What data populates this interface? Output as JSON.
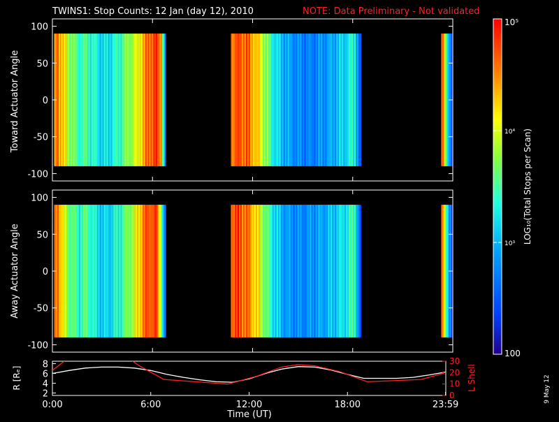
{
  "title": "TWINS1: Stop Counts: 12 Jan (day  12), 2010",
  "note": "NOTE: Data Preliminary - Not validated",
  "stamp": "9 May 12",
  "colors": {
    "background": "#000000",
    "axes": "#ffffff",
    "note": "#ff2020",
    "r_line": "#ffffff",
    "lshell_line": "#ff2020"
  },
  "chart_data": [
    {
      "type": "heatmap",
      "panel": "toward",
      "ylabel": "Toward Actuator Angle",
      "xlim": [
        0,
        24
      ],
      "ylim": [
        -110,
        110
      ],
      "yticks": [
        100,
        50,
        0,
        -50,
        -100
      ],
      "angle_range": [
        -90,
        90
      ],
      "data_intervals_hours": [
        [
          0.1,
          6.8
        ],
        [
          10.7,
          18.5
        ],
        [
          23.3,
          24.0
        ]
      ],
      "colorscale": "rainbow",
      "columns": [
        {
          "t": 0.1,
          "c": 0.78
        },
        {
          "t": 0.3,
          "c": 0.88
        },
        {
          "t": 0.6,
          "c": 0.72
        },
        {
          "t": 1.0,
          "c": 0.6
        },
        {
          "t": 1.5,
          "c": 0.48
        },
        {
          "t": 2.0,
          "c": 0.5
        },
        {
          "t": 2.5,
          "c": 0.44
        },
        {
          "t": 3.0,
          "c": 0.38
        },
        {
          "t": 3.5,
          "c": 0.42
        },
        {
          "t": 4.0,
          "c": 0.48
        },
        {
          "t": 4.5,
          "c": 0.58
        },
        {
          "t": 5.0,
          "c": 0.66
        },
        {
          "t": 5.4,
          "c": 0.78
        },
        {
          "t": 5.8,
          "c": 0.9
        },
        {
          "t": 6.2,
          "c": 0.92
        },
        {
          "t": 6.5,
          "c": 0.82
        },
        {
          "t": 6.8,
          "c": 0.0
        },
        {
          "t": 10.7,
          "c": 0.86
        },
        {
          "t": 11.1,
          "c": 0.9
        },
        {
          "t": 11.6,
          "c": 0.88
        },
        {
          "t": 12.1,
          "c": 0.78
        },
        {
          "t": 12.6,
          "c": 0.64
        },
        {
          "t": 13.1,
          "c": 0.46
        },
        {
          "t": 13.6,
          "c": 0.36
        },
        {
          "t": 14.1,
          "c": 0.3
        },
        {
          "t": 14.6,
          "c": 0.26
        },
        {
          "t": 15.1,
          "c": 0.24
        },
        {
          "t": 15.6,
          "c": 0.24
        },
        {
          "t": 16.1,
          "c": 0.27
        },
        {
          "t": 16.6,
          "c": 0.3
        },
        {
          "t": 17.1,
          "c": 0.35
        },
        {
          "t": 17.6,
          "c": 0.4
        },
        {
          "t": 18.1,
          "c": 0.46
        },
        {
          "t": 18.5,
          "c": 0.0
        },
        {
          "t": 23.3,
          "c": 0.9
        },
        {
          "t": 24.0,
          "c": 0.0
        }
      ]
    },
    {
      "type": "heatmap",
      "panel": "away",
      "ylabel": "Away Actuator Angle",
      "xlim": [
        0,
        24
      ],
      "ylim": [
        -110,
        110
      ],
      "yticks": [
        100,
        50,
        0,
        -50,
        -100
      ],
      "angle_range": [
        -90,
        90
      ],
      "data_intervals_hours": [
        [
          0.1,
          6.8
        ],
        [
          10.7,
          18.5
        ],
        [
          23.3,
          24.0
        ]
      ],
      "colorscale": "rainbow",
      "columns": [
        {
          "t": 0.1,
          "c": 0.8
        },
        {
          "t": 0.3,
          "c": 0.9
        },
        {
          "t": 0.6,
          "c": 0.66
        },
        {
          "t": 1.0,
          "c": 0.56
        },
        {
          "t": 1.5,
          "c": 0.46
        },
        {
          "t": 2.0,
          "c": 0.52
        },
        {
          "t": 2.5,
          "c": 0.42
        },
        {
          "t": 3.0,
          "c": 0.36
        },
        {
          "t": 3.5,
          "c": 0.4
        },
        {
          "t": 4.0,
          "c": 0.46
        },
        {
          "t": 4.5,
          "c": 0.56
        },
        {
          "t": 5.0,
          "c": 0.68
        },
        {
          "t": 5.4,
          "c": 0.84
        },
        {
          "t": 5.8,
          "c": 0.92
        },
        {
          "t": 6.2,
          "c": 0.9
        },
        {
          "t": 6.5,
          "c": 0.6
        },
        {
          "t": 6.8,
          "c": 0.0
        },
        {
          "t": 10.7,
          "c": 0.9
        },
        {
          "t": 11.1,
          "c": 0.92
        },
        {
          "t": 11.6,
          "c": 0.86
        },
        {
          "t": 12.1,
          "c": 0.76
        },
        {
          "t": 12.6,
          "c": 0.6
        },
        {
          "t": 13.1,
          "c": 0.44
        },
        {
          "t": 13.6,
          "c": 0.34
        },
        {
          "t": 14.1,
          "c": 0.28
        },
        {
          "t": 14.6,
          "c": 0.26
        },
        {
          "t": 15.1,
          "c": 0.26
        },
        {
          "t": 15.6,
          "c": 0.28
        },
        {
          "t": 16.1,
          "c": 0.3
        },
        {
          "t": 16.6,
          "c": 0.34
        },
        {
          "t": 17.1,
          "c": 0.38
        },
        {
          "t": 17.6,
          "c": 0.42
        },
        {
          "t": 18.1,
          "c": 0.5
        },
        {
          "t": 18.5,
          "c": 0.0
        },
        {
          "t": 23.3,
          "c": 0.86
        },
        {
          "t": 24.0,
          "c": 0.0
        }
      ]
    },
    {
      "type": "line",
      "panel": "orbit",
      "ylabel_left": "R [Rₑ]",
      "ylabel_right": "L Shell",
      "xlabel": "Time (UT)",
      "xlim": [
        0,
        24
      ],
      "ylim_left": [
        1.5,
        8.5
      ],
      "yticks_left": [
        2,
        4,
        6,
        8
      ],
      "ylim_right": [
        0,
        30
      ],
      "yticks_right": [
        0,
        10,
        20,
        30
      ],
      "xticks": [
        0,
        6,
        12,
        18,
        23.983
      ],
      "xtick_labels": [
        "0:00",
        "6:00",
        "12:00",
        "18:00",
        "23:59"
      ],
      "series": [
        {
          "axis": "left",
          "color": "#ffffff",
          "x": [
            0,
            1,
            2,
            3,
            4,
            5,
            6,
            7,
            8,
            9,
            10,
            11,
            12,
            13,
            14,
            15,
            16,
            17,
            18,
            19,
            20,
            21,
            22,
            23,
            24
          ],
          "y": [
            6.0,
            6.6,
            7.1,
            7.3,
            7.3,
            7.1,
            6.6,
            5.8,
            5.2,
            4.7,
            4.3,
            4.2,
            4.9,
            6.0,
            6.9,
            7.4,
            7.3,
            6.7,
            5.8,
            5.0,
            5.0,
            5.0,
            5.2,
            5.7,
            6.3
          ]
        },
        {
          "axis": "right",
          "color": "#ff2020",
          "x": [
            0,
            0.8,
            4.8,
            5.3,
            6.8,
            10.7,
            12.5,
            14.0,
            15.0,
            16.0,
            17.5,
            19.2,
            22.5,
            24.0
          ],
          "y": [
            22,
            31,
            31,
            26,
            14,
            10,
            17,
            25,
            27,
            26,
            21,
            12,
            14,
            20
          ]
        }
      ]
    }
  ],
  "colorbar": {
    "label": "LOG₁₀(Total Stops per Scan)",
    "ticks": [
      {
        "value": 100,
        "label": "100"
      },
      {
        "value": 1000,
        "label": "10³"
      },
      {
        "value": 10000,
        "label": "10⁴"
      },
      {
        "value": 100000,
        "label": "10⁵"
      }
    ],
    "range": [
      100,
      100000
    ],
    "scale": "log"
  }
}
